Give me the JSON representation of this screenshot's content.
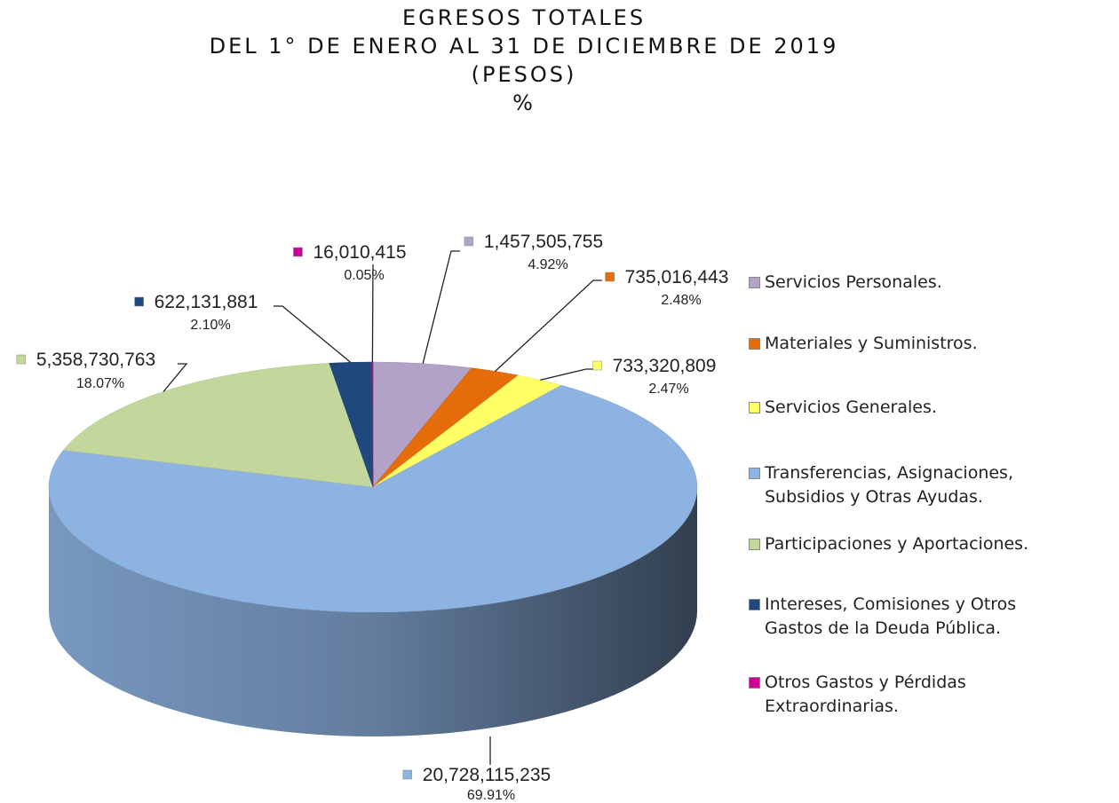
{
  "chart_data": {
    "type": "pie3d",
    "title": [
      "EGRESOS TOTALES",
      "DEL 1° DE ENERO AL 31 DE DICIEMBRE DE 2019",
      "(PESOS)",
      "%"
    ],
    "categories": [
      "Servicios Personales.",
      "Materiales y Suministros.",
      "Servicios Generales.",
      "Transferencias, Asignaciones,\nSubsidios y Otras Ayudas.",
      "Participaciones y Aportaciones.",
      "Intereses, Comisiones y Otros\nGastos de la Deuda Pública.",
      "Otros Gastos y Pérdidas\nExtraordinarias."
    ],
    "values": [
      1457505755,
      735016443,
      733320809,
      20728115235,
      5358730763,
      622131881,
      16010415
    ],
    "value_labels": [
      "1,457,505,755",
      "735,016,443",
      "733,320,809",
      "20,728,115,235",
      "5,358,730,763",
      "622,131,881",
      "16,010,415"
    ],
    "percent_labels": [
      "4.92%",
      "2.48%",
      "2.47%",
      "69.91%",
      "18.07%",
      "2.10%",
      "0.05%"
    ],
    "colors": [
      "#b3a2c7",
      "#e46c0a",
      "#ffff66",
      "#8db3e2",
      "#c3d69b",
      "#1f497d",
      "#cc0099"
    ],
    "legend": "right"
  }
}
